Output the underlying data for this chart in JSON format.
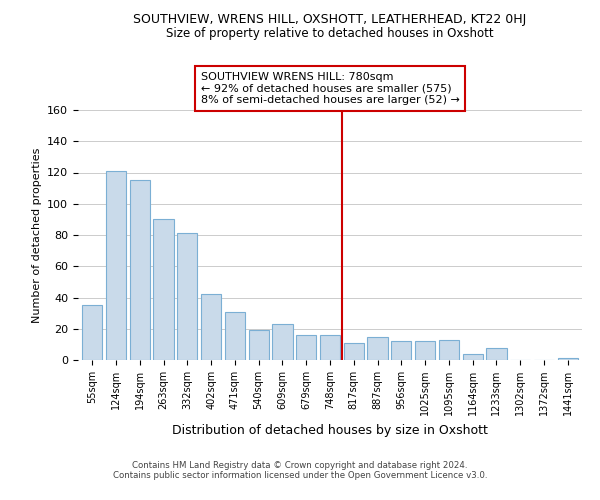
{
  "title": "SOUTHVIEW, WRENS HILL, OXSHOTT, LEATHERHEAD, KT22 0HJ",
  "subtitle": "Size of property relative to detached houses in Oxshott",
  "xlabel": "Distribution of detached houses by size in Oxshott",
  "ylabel": "Number of detached properties",
  "bar_labels": [
    "55sqm",
    "124sqm",
    "194sqm",
    "263sqm",
    "332sqm",
    "402sqm",
    "471sqm",
    "540sqm",
    "609sqm",
    "679sqm",
    "748sqm",
    "817sqm",
    "887sqm",
    "956sqm",
    "1025sqm",
    "1095sqm",
    "1164sqm",
    "1233sqm",
    "1302sqm",
    "1372sqm",
    "1441sqm"
  ],
  "bar_values": [
    35,
    121,
    115,
    90,
    81,
    42,
    31,
    19,
    23,
    16,
    16,
    11,
    15,
    12,
    12,
    13,
    4,
    8,
    0,
    0,
    1
  ],
  "bar_color": "#c9daea",
  "bar_edge_color": "#7bafd4",
  "vline_x": 10.5,
  "vline_color": "#cc0000",
  "ylim": [
    0,
    160
  ],
  "yticks": [
    0,
    20,
    40,
    60,
    80,
    100,
    120,
    140,
    160
  ],
  "annotation_title": "SOUTHVIEW WRENS HILL: 780sqm",
  "annotation_line1": "← 92% of detached houses are smaller (575)",
  "annotation_line2": "8% of semi-detached houses are larger (52) →",
  "footer_line1": "Contains HM Land Registry data © Crown copyright and database right 2024.",
  "footer_line2": "Contains public sector information licensed under the Open Government Licence v3.0.",
  "background_color": "#ffffff",
  "grid_color": "#cccccc"
}
